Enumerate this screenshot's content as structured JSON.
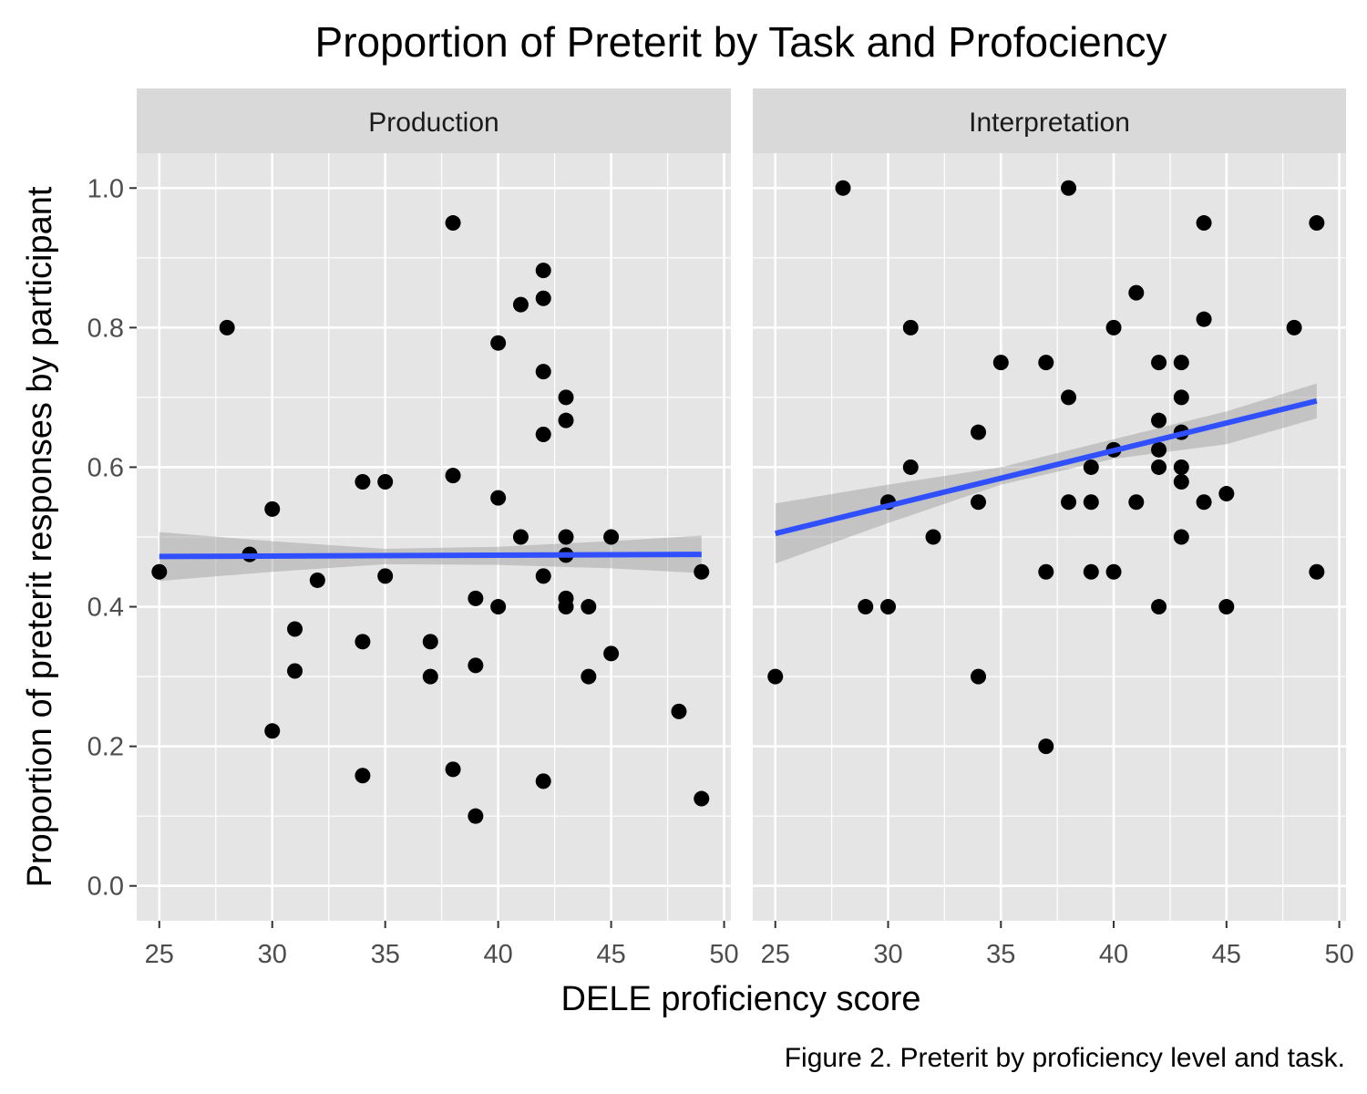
{
  "chart_data": {
    "type": "scatter",
    "title": "Proportion of Preterit by Task and Profociency",
    "xlabel": "DELE proficiency score",
    "ylabel": "Proportion of preterit responses by participant",
    "caption": "Figure 2. Preterit by proficiency level and task.",
    "xlim": [
      24,
      50.3
    ],
    "ylim": [
      -0.05,
      1.05
    ],
    "x_ticks": [
      25,
      30,
      35,
      40,
      45,
      50
    ],
    "x_tick_labels": [
      "25",
      "30",
      "35",
      "40",
      "45",
      "50"
    ],
    "y_ticks": [
      0.0,
      0.2,
      0.4,
      0.6,
      0.8,
      1.0
    ],
    "y_tick_labels": [
      "0.0",
      "0.2",
      "0.4",
      "0.6",
      "0.8",
      "1.0"
    ],
    "grid": true,
    "colors": {
      "panel_bg": "#e5e5e5",
      "strip_bg": "#d9d9d9",
      "grid": "#ffffff",
      "point": "#000000",
      "fit_line": "#3050ff",
      "ribbon": "#999999"
    },
    "panels": [
      {
        "name": "Production",
        "points": [
          [
            25,
            0.45
          ],
          [
            28,
            0.8
          ],
          [
            29,
            0.475
          ],
          [
            30,
            0.54
          ],
          [
            30,
            0.222
          ],
          [
            31,
            0.368
          ],
          [
            31,
            0.308
          ],
          [
            32,
            0.438
          ],
          [
            34,
            0.579
          ],
          [
            34,
            0.35
          ],
          [
            34,
            0.158
          ],
          [
            35,
            0.579
          ],
          [
            35,
            0.444
          ],
          [
            37,
            0.35
          ],
          [
            37,
            0.3
          ],
          [
            38,
            0.95
          ],
          [
            38,
            0.588
          ],
          [
            38,
            0.167
          ],
          [
            39,
            0.412
          ],
          [
            39,
            0.316
          ],
          [
            39,
            0.1
          ],
          [
            40,
            0.778
          ],
          [
            40,
            0.556
          ],
          [
            40,
            0.4
          ],
          [
            41,
            0.833
          ],
          [
            41,
            0.5
          ],
          [
            42,
            0.882
          ],
          [
            42,
            0.842
          ],
          [
            42,
            0.737
          ],
          [
            42,
            0.647
          ],
          [
            42,
            0.444
          ],
          [
            42,
            0.15
          ],
          [
            43,
            0.7
          ],
          [
            43,
            0.667
          ],
          [
            43,
            0.5
          ],
          [
            43,
            0.474
          ],
          [
            43,
            0.412
          ],
          [
            43,
            0.4
          ],
          [
            44,
            0.4
          ],
          [
            44,
            0.3
          ],
          [
            45,
            0.5
          ],
          [
            45,
            0.333
          ],
          [
            48,
            0.25
          ],
          [
            49,
            0.45
          ],
          [
            49,
            0.125
          ]
        ],
        "fit": {
          "x": [
            25,
            49
          ],
          "y": [
            0.472,
            0.475
          ]
        },
        "ribbon": {
          "x": [
            25,
            30,
            35,
            40,
            45,
            49
          ],
          "lower": [
            0.437,
            0.45,
            0.461,
            0.46,
            0.455,
            0.448
          ],
          "upper": [
            0.507,
            0.494,
            0.483,
            0.486,
            0.494,
            0.502
          ]
        }
      },
      {
        "name": "Interpretation",
        "points": [
          [
            25,
            0.3
          ],
          [
            28,
            1.0
          ],
          [
            29,
            0.4
          ],
          [
            30,
            0.55
          ],
          [
            30,
            0.4
          ],
          [
            31,
            0.8
          ],
          [
            31,
            0.6
          ],
          [
            32,
            0.5
          ],
          [
            34,
            0.65
          ],
          [
            34,
            0.55
          ],
          [
            34,
            0.3
          ],
          [
            35,
            0.75
          ],
          [
            37,
            0.75
          ],
          [
            37,
            0.45
          ],
          [
            37,
            0.2
          ],
          [
            38,
            1.0
          ],
          [
            38,
            0.7
          ],
          [
            38,
            0.55
          ],
          [
            39,
            0.6
          ],
          [
            39,
            0.55
          ],
          [
            39,
            0.45
          ],
          [
            40,
            0.8
          ],
          [
            40,
            0.625
          ],
          [
            40,
            0.45
          ],
          [
            41,
            0.85
          ],
          [
            41,
            0.55
          ],
          [
            42,
            0.75
          ],
          [
            42,
            0.667
          ],
          [
            42,
            0.625
          ],
          [
            42,
            0.6
          ],
          [
            42,
            0.4
          ],
          [
            43,
            0.75
          ],
          [
            43,
            0.7
          ],
          [
            43,
            0.65
          ],
          [
            43,
            0.6
          ],
          [
            43,
            0.579
          ],
          [
            43,
            0.5
          ],
          [
            44,
            0.95
          ],
          [
            44,
            0.812
          ],
          [
            44,
            0.55
          ],
          [
            45,
            0.562
          ],
          [
            45,
            0.4
          ],
          [
            48,
            0.8
          ],
          [
            49,
            0.95
          ],
          [
            49,
            0.45
          ]
        ],
        "fit": {
          "x": [
            25,
            49
          ],
          "y": [
            0.505,
            0.695
          ]
        },
        "ribbon": {
          "x": [
            25,
            30,
            35,
            40,
            45,
            49
          ],
          "lower": [
            0.462,
            0.52,
            0.575,
            0.612,
            0.633,
            0.67
          ],
          "upper": [
            0.548,
            0.575,
            0.6,
            0.64,
            0.68,
            0.72
          ]
        }
      }
    ]
  }
}
